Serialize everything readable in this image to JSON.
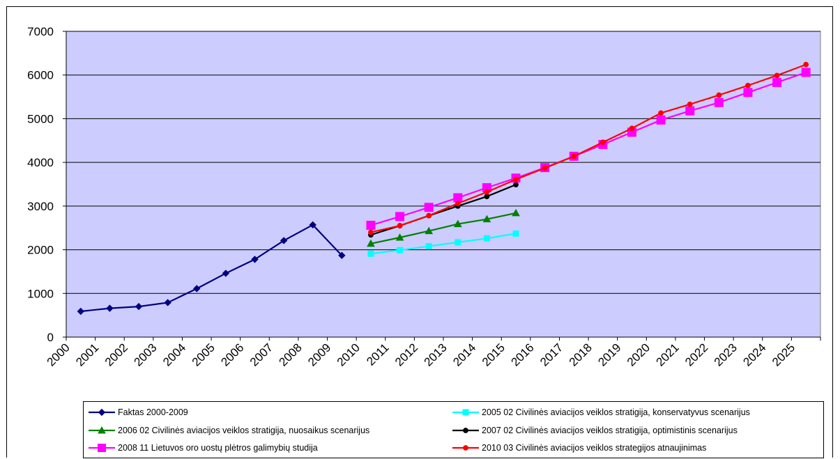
{
  "chart_data": {
    "type": "line",
    "title": "",
    "xlabel": "",
    "ylabel": "",
    "x_tick_labels": [
      "2000",
      "2001",
      "2002",
      "2003",
      "2004",
      "2005",
      "2006",
      "2007",
      "2008",
      "2009",
      "2010",
      "2011",
      "2012",
      "2013",
      "2014",
      "2015",
      "2016",
      "2017",
      "2018",
      "2019",
      "2020",
      "2021",
      "2022",
      "2023",
      "2024",
      "2025"
    ],
    "y_ticks": [
      "0",
      "1000",
      "2000",
      "3000",
      "4000",
      "5000",
      "6000",
      "7000"
    ],
    "ylim": [
      0,
      7000
    ],
    "grid": "horizontal",
    "plot_background": "#ccccff",
    "legend_position": "bottom",
    "series": [
      {
        "name": "Faktas 2000-2009",
        "color": "#000080",
        "marker": "diamond",
        "x": [
          2000,
          2001,
          2002,
          2003,
          2004,
          2005,
          2006,
          2007,
          2008,
          2009
        ],
        "values": [
          590,
          660,
          700,
          790,
          1110,
          1460,
          1780,
          2210,
          2570,
          1870
        ]
      },
      {
        "name": "2005 02 Civilinės aviacijos veiklos stratigija, konservatyvus scenarijus",
        "color": "#00ffff",
        "marker": "square",
        "x": [
          2010,
          2011,
          2012,
          2013,
          2014,
          2015
        ],
        "values": [
          1910,
          1990,
          2080,
          2170,
          2260,
          2370
        ]
      },
      {
        "name": "2006 02 Civilinės aviacijos veiklos stratigija, nuosaikus scenarijus",
        "color": "#008000",
        "marker": "triangle",
        "x": [
          2010,
          2011,
          2012,
          2013,
          2014,
          2015
        ],
        "values": [
          2140,
          2280,
          2430,
          2590,
          2700,
          2840
        ]
      },
      {
        "name": "2007 02 Civilinės aviacijos veiklos stratigija, optimistinis scenarijus",
        "color": "#000000",
        "marker": "circle",
        "x": [
          2010,
          2011,
          2012,
          2013,
          2014,
          2015
        ],
        "values": [
          2340,
          2550,
          2780,
          3000,
          3220,
          3490
        ]
      },
      {
        "name": "2008 11 Lietuvos oro uostų plėtros galimybių studija",
        "color": "#ff00ff",
        "marker": "square",
        "x": [
          2010,
          2011,
          2012,
          2013,
          2014,
          2015,
          2016,
          2017,
          2018,
          2019,
          2020,
          2021,
          2022,
          2023,
          2024,
          2025
        ],
        "values": [
          2560,
          2760,
          2970,
          3190,
          3420,
          3640,
          3880,
          4140,
          4410,
          4690,
          4970,
          5180,
          5370,
          5600,
          5830,
          6060
        ]
      },
      {
        "name": "2010 03 Civilinės aviacijos veiklos strategijos atnaujinimas",
        "color": "#ff0000",
        "marker": "circle",
        "x": [
          2010,
          2011,
          2012,
          2013,
          2014,
          2015,
          2016,
          2017,
          2018,
          2019,
          2020,
          2021,
          2022,
          2023,
          2024,
          2025
        ],
        "values": [
          2400,
          2550,
          2780,
          3060,
          3320,
          3610,
          3870,
          4140,
          4460,
          4780,
          5130,
          5330,
          5540,
          5760,
          5990,
          6240
        ]
      }
    ]
  }
}
